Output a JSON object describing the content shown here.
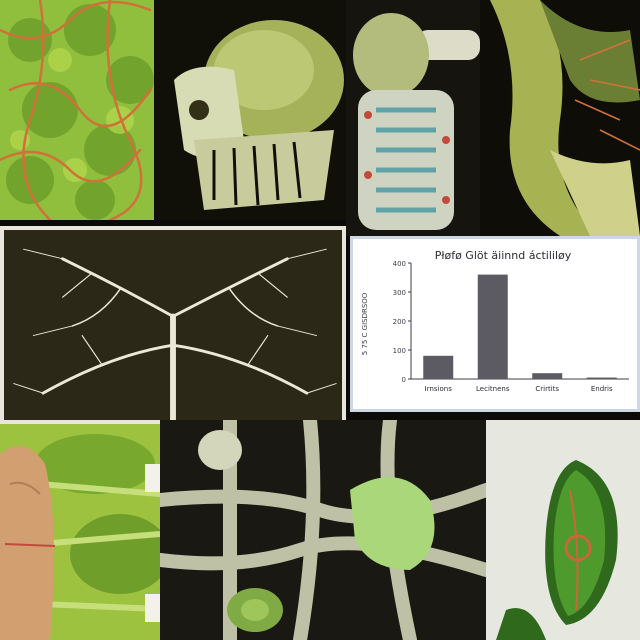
{
  "chart_data": {
    "type": "bar",
    "title": "Płøfø Glöt äiinnd áctililøy",
    "categories": [
      "Irnsions",
      "Lecitnens",
      "Crirtits",
      "Endris"
    ],
    "values": [
      80,
      360,
      20,
      5
    ],
    "ylabel": "",
    "ylim": [
      0,
      400
    ],
    "yticks": [
      {
        "v": 0,
        "label": "0"
      },
      {
        "v": 100,
        "label": "100"
      },
      {
        "v": 200,
        "label": "200"
      },
      {
        "v": 300,
        "label": "300"
      },
      {
        "v": 400,
        "label": "400"
      }
    ],
    "side_label": "5 75 C GISDRSOO",
    "bar_color": "#5c5a63",
    "grid": false
  },
  "colors": {
    "leaf_green": "#9cc23f",
    "vein_orange": "#d0713a",
    "background_dark": "#0c0a06"
  }
}
